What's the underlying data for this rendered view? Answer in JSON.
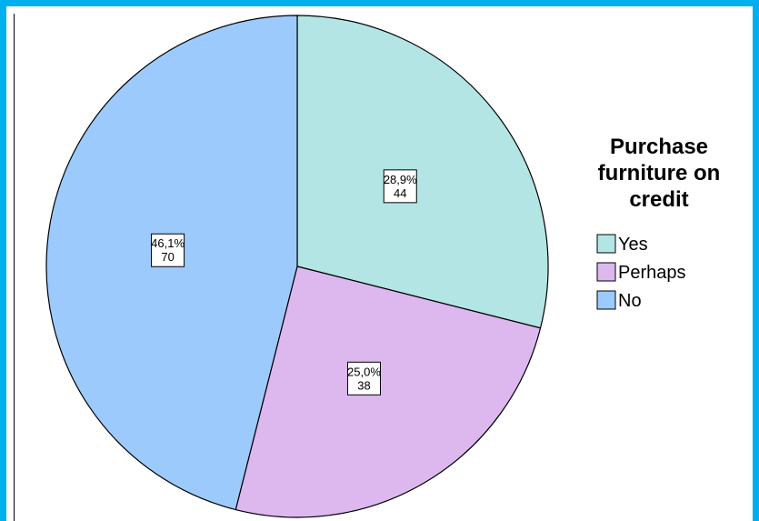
{
  "chart_data": {
    "type": "pie",
    "title": "",
    "legend_title": [
      "Purchase",
      "furniture on",
      "credit"
    ],
    "legend_position": "right",
    "start_angle_deg": 0,
    "direction": "clockwise",
    "slices": [
      {
        "label": "Yes",
        "count": 44,
        "percent": "28,9%",
        "color": "#b3e5e5"
      },
      {
        "label": "Perhaps",
        "count": 38,
        "percent": "25,0%",
        "color": "#dcb8ef"
      },
      {
        "label": "No",
        "count": 70,
        "percent": "46,1%",
        "color": "#9ccafc"
      }
    ]
  },
  "colors": {
    "frame": "#00b0ee"
  }
}
